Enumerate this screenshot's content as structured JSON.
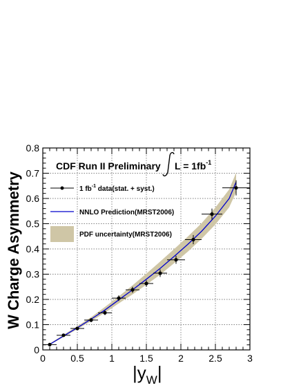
{
  "chart_data": {
    "type": "scatter",
    "title": "CDF Run II Preliminary",
    "title_lumi": "L = 1fb",
    "title_lumi_sup": "-1",
    "xlabel": "|y",
    "xlabel_sub": "W",
    "xlabel_end": "|",
    "ylabel": "W Charge Asymmetry",
    "xlim": [
      0,
      3
    ],
    "ylim": [
      0,
      0.8
    ],
    "x_ticks": [
      "0",
      "0.5",
      "1",
      "1.5",
      "2",
      "2.5",
      "3"
    ],
    "y_ticks": [
      "0",
      "0.1",
      "0.2",
      "0.3",
      "0.4",
      "0.5",
      "0.6",
      "0.7",
      "0.8"
    ],
    "grid": true,
    "legend": {
      "placement": "top-left",
      "data_label_a": "1 fb",
      "data_label_sup": "-1",
      "data_label_b": " data(stat. + syst.)",
      "nnlo_label": "NNLO Prediction(MRST2006)",
      "pdf_label": "PDF uncertainty(MRST2006)"
    },
    "colors": {
      "data": "#000000",
      "nnlo": "#0000cc",
      "pdf_band": "#cfc6a6",
      "grid": "#555555"
    },
    "series": [
      {
        "name": "1 fb-1 data(stat. + syst.)",
        "points": [
          {
            "x": 0.1,
            "y": 0.021,
            "xerr": 0.1,
            "yerr": 0.004
          },
          {
            "x": 0.3,
            "y": 0.058,
            "xerr": 0.1,
            "yerr": 0.006
          },
          {
            "x": 0.5,
            "y": 0.085,
            "xerr": 0.1,
            "yerr": 0.007
          },
          {
            "x": 0.7,
            "y": 0.118,
            "xerr": 0.1,
            "yerr": 0.008
          },
          {
            "x": 0.9,
            "y": 0.147,
            "xerr": 0.1,
            "yerr": 0.009
          },
          {
            "x": 1.1,
            "y": 0.205,
            "xerr": 0.1,
            "yerr": 0.011
          },
          {
            "x": 1.3,
            "y": 0.238,
            "xerr": 0.1,
            "yerr": 0.012
          },
          {
            "x": 1.5,
            "y": 0.263,
            "xerr": 0.1,
            "yerr": 0.013
          },
          {
            "x": 1.7,
            "y": 0.304,
            "xerr": 0.1,
            "yerr": 0.015
          },
          {
            "x": 1.93,
            "y": 0.357,
            "xerr": 0.13,
            "yerr": 0.016
          },
          {
            "x": 2.18,
            "y": 0.437,
            "xerr": 0.12,
            "yerr": 0.018
          },
          {
            "x": 2.45,
            "y": 0.538,
            "xerr": 0.15,
            "yerr": 0.022
          },
          {
            "x": 2.8,
            "y": 0.642,
            "xerr": 0.2,
            "yerr": 0.03
          }
        ]
      },
      {
        "name": "NNLO Prediction(MRST2006)",
        "x": [
          0.1,
          0.3,
          0.5,
          0.7,
          0.9,
          1.1,
          1.3,
          1.5,
          1.7,
          1.9,
          2.1,
          2.3,
          2.5,
          2.7,
          2.8
        ],
        "y": [
          0.022,
          0.055,
          0.088,
          0.122,
          0.158,
          0.198,
          0.238,
          0.28,
          0.323,
          0.37,
          0.418,
          0.47,
          0.53,
          0.6,
          0.665
        ]
      },
      {
        "name": "PDF uncertainty(MRST2006)",
        "x": [
          0.1,
          0.3,
          0.5,
          0.7,
          0.9,
          1.1,
          1.3,
          1.5,
          1.7,
          1.9,
          2.1,
          2.3,
          2.5,
          2.7,
          2.8
        ],
        "y_low": [
          0.02,
          0.051,
          0.082,
          0.114,
          0.147,
          0.184,
          0.22,
          0.258,
          0.298,
          0.343,
          0.389,
          0.44,
          0.497,
          0.565,
          0.625
        ],
        "y_high": [
          0.025,
          0.06,
          0.094,
          0.13,
          0.17,
          0.212,
          0.256,
          0.302,
          0.35,
          0.399,
          0.449,
          0.502,
          0.564,
          0.636,
          0.702
        ]
      }
    ]
  }
}
